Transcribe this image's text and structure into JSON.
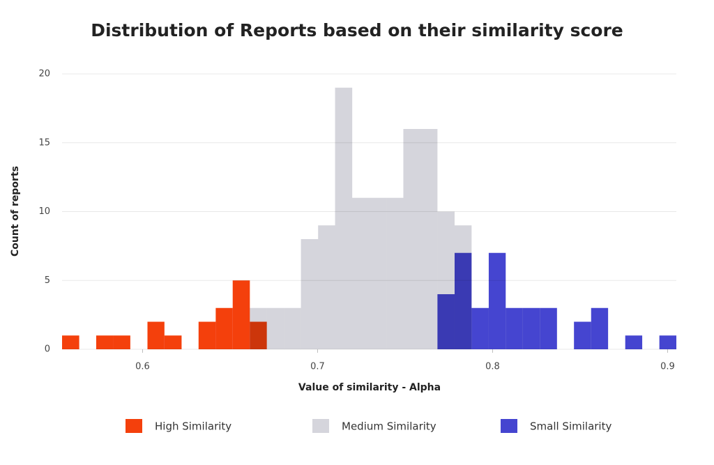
{
  "chart_data": {
    "type": "histogram",
    "title": "Distribution of Reports based on their similarity score",
    "x_label": "Value of similarity - Alpha",
    "y_label": "Count of reports",
    "xlim": [
      0.554,
      0.905
    ],
    "xticks": [
      0.6,
      0.7,
      0.8,
      0.9
    ],
    "ylim": [
      0,
      20
    ],
    "yticks": [
      0,
      5,
      10,
      15,
      20
    ],
    "grid": true,
    "legend": "bottom",
    "series": [
      {
        "name": "Medium Similarity",
        "color": "#d5d5dc",
        "bins": [
          0.6613,
          0.671,
          0.6808,
          0.6905,
          0.7003,
          0.71,
          0.7198,
          0.7295,
          0.7393,
          0.749,
          0.7588,
          0.7685,
          0.7783,
          0.788
        ],
        "values": [
          3,
          3,
          3,
          8,
          9,
          19,
          11,
          11,
          11,
          16,
          16,
          10,
          9
        ]
      },
      {
        "name": "High Similarity",
        "color": "#f4400c",
        "bins": [
          0.554,
          0.5638,
          0.5735,
          0.5833,
          0.593,
          0.6028,
          0.6125,
          0.6223,
          0.632,
          0.6418,
          0.6515,
          0.6613,
          0.671
        ],
        "values": [
          1,
          0,
          1,
          1,
          0,
          2,
          1,
          0,
          2,
          3,
          5,
          2
        ]
      },
      {
        "name": "Small Similarity",
        "color": "#4545d0",
        "bins": [
          0.7685,
          0.7783,
          0.788,
          0.7978,
          0.8075,
          0.8173,
          0.827,
          0.8368,
          0.8465,
          0.8563,
          0.866,
          0.8758,
          0.8855,
          0.8953,
          0.905
        ],
        "values": [
          4,
          7,
          3,
          7,
          3,
          3,
          3,
          0,
          2,
          3,
          0,
          1,
          0,
          1
        ]
      }
    ]
  }
}
